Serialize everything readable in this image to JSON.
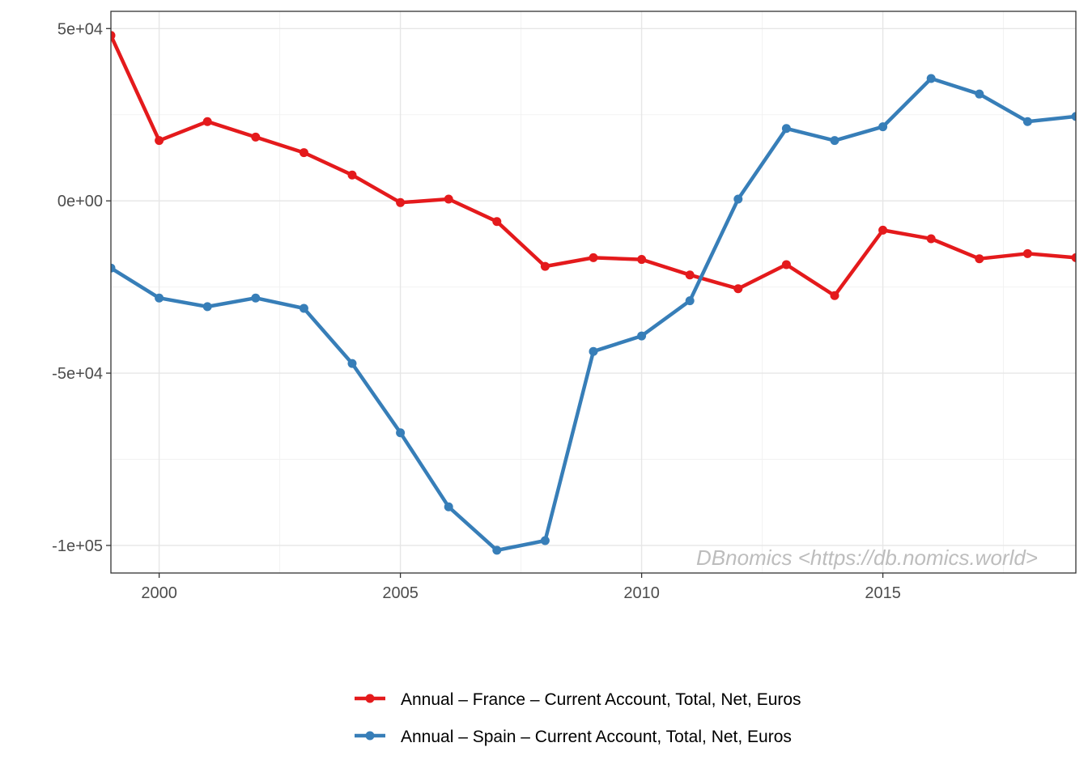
{
  "chart_data": {
    "type": "line",
    "x": [
      1999,
      2000,
      2001,
      2002,
      2003,
      2004,
      2005,
      2006,
      2007,
      2008,
      2009,
      2010,
      2011,
      2012,
      2013,
      2014,
      2015,
      2016,
      2017,
      2018,
      2019
    ],
    "series": [
      {
        "name": "Annual – France – Current Account, Total, Net, Euros",
        "color": "#e41a1c",
        "values": [
          48000,
          17500,
          23000,
          18500,
          14000,
          7500,
          -500,
          500,
          -6000,
          -19000,
          -16500,
          -17000,
          -21500,
          -25500,
          -18500,
          -27500,
          -8500,
          -11000,
          -16800,
          -15300,
          -16500
        ]
      },
      {
        "name": "Annual – Spain – Current Account, Total, Net, Euros",
        "color": "#377eb8",
        "values": [
          -19500,
          -28200,
          -30700,
          -28200,
          -31200,
          -47200,
          -67300,
          -88800,
          -101400,
          -98600,
          -43700,
          -39200,
          -29000,
          500,
          21000,
          17500,
          21500,
          35500,
          31000,
          23000,
          24500
        ]
      }
    ],
    "xlim": [
      1999,
      2019
    ],
    "ylim": [
      -108000,
      55000
    ],
    "x_ticks": [
      2000,
      2005,
      2010,
      2015
    ],
    "x_tick_labels": [
      "2000",
      "2005",
      "2010",
      "2015"
    ],
    "x_minor_ticks": [
      2002.5,
      2007.5,
      2012.5,
      2017.5
    ],
    "y_ticks": [
      50000,
      0,
      -50000,
      -100000
    ],
    "y_tick_labels": [
      "5e+04",
      "0e+00",
      "-5e+04",
      "-1e+05"
    ],
    "y_minor_ticks": [
      25000,
      -25000,
      -75000
    ],
    "grid": true,
    "legend_position": "bottom",
    "annotation": "DBnomics <https://db.nomics.world>"
  }
}
